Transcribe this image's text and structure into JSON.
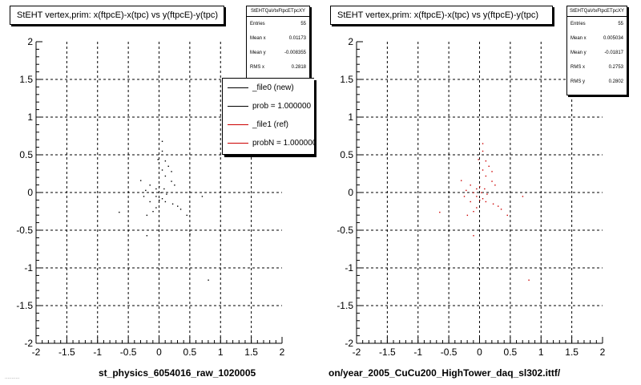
{
  "chart_data": [
    {
      "type": "scatter",
      "title": "StEHT  vertex,prim: x(ftpcE)-x(tpc) vs y(ftpcE)-y(tpc)",
      "xlim": [
        -2,
        2
      ],
      "ylim": [
        -2,
        2
      ],
      "x_ticks": [
        "-2",
        "-1.5",
        "-1",
        "-0.5",
        "0",
        "0.5",
        "1",
        "1.5",
        "2"
      ],
      "y_ticks": [
        "2",
        "1.5",
        "1",
        "0.5",
        "0",
        "-0.5",
        "-1",
        "-1.5",
        "-2"
      ],
      "grid": true,
      "caption": "st_physics_6054016_raw_1020005",
      "marker_color": "#000000",
      "points": [
        [
          0.05,
          0.68
        ],
        [
          0.05,
          0.55
        ],
        [
          0.1,
          0.42
        ],
        [
          -0.02,
          0.44
        ],
        [
          0.15,
          0.35
        ],
        [
          0.2,
          0.28
        ],
        [
          0.05,
          0.3
        ],
        [
          0.1,
          0.22
        ],
        [
          0.2,
          0.15
        ],
        [
          -0.3,
          0.16
        ],
        [
          -0.15,
          0.1
        ],
        [
          -0.05,
          0.05
        ],
        [
          0.0,
          0.08
        ],
        [
          0.08,
          0.05
        ],
        [
          -0.22,
          0.03
        ],
        [
          -0.1,
          0.0
        ],
        [
          0.03,
          0.0
        ],
        [
          0.12,
          -0.02
        ],
        [
          0.25,
          0.1
        ],
        [
          -0.05,
          -0.05
        ],
        [
          0.0,
          -0.1
        ],
        [
          0.05,
          -0.08
        ],
        [
          -0.15,
          -0.12
        ],
        [
          0.1,
          -0.12
        ],
        [
          -0.25,
          -0.05
        ],
        [
          0.3,
          -0.18
        ],
        [
          0.22,
          -0.15
        ],
        [
          -0.05,
          -0.2
        ],
        [
          -0.1,
          -0.25
        ],
        [
          0.35,
          -0.22
        ],
        [
          -0.65,
          -0.26
        ],
        [
          -0.2,
          -0.3
        ],
        [
          0.45,
          -0.3
        ],
        [
          0.5,
          -0.55
        ],
        [
          -0.2,
          -0.57
        ],
        [
          0.8,
          -1.16
        ],
        [
          0.7,
          -0.05
        ]
      ],
      "stats": {
        "name": "StEHTQaVtxFtpcETpcXY",
        "entries_label": "Entries",
        "entries": "55",
        "mean_x_label": "Mean x",
        "mean_x": "0.01173",
        "mean_y_label": "Mean y",
        "mean_y": "-0.008355",
        "rms_x_label": "RMS x",
        "rms_x": "0.2818"
      },
      "legend": [
        {
          "label": "_file0 (new)",
          "color": "#000000"
        },
        {
          "label": "prob = 1.000000",
          "color": "#000000"
        },
        {
          "label": "_file1 (ref)",
          "color": "#cc0000"
        },
        {
          "label": "probN = 1.000000",
          "color": "#cc0000"
        }
      ]
    },
    {
      "type": "scatter",
      "title": "StEHT  vertex,prim: x(ftpcE)-x(tpc) vs y(ftpcE)-y(tpc)",
      "xlim": [
        -2,
        2
      ],
      "ylim": [
        -2,
        2
      ],
      "x_ticks": [
        "-2",
        "-1.5",
        "-1",
        "-0.5",
        "0",
        "0.5",
        "1",
        "1.5",
        "2"
      ],
      "y_ticks": [
        "2",
        "1.5",
        "1",
        "0.5",
        "0",
        "-0.5",
        "-1",
        "-1.5",
        "-2"
      ],
      "grid": true,
      "caption": "on/year_2005_CuCu200_HighTower_daq_sl302.ittf/",
      "marker_color": "#cc0000",
      "points": [
        [
          0.05,
          0.65
        ],
        [
          0.05,
          0.55
        ],
        [
          0.1,
          0.42
        ],
        [
          -0.02,
          0.44
        ],
        [
          0.15,
          0.35
        ],
        [
          0.2,
          0.28
        ],
        [
          0.05,
          0.3
        ],
        [
          0.1,
          0.22
        ],
        [
          0.2,
          0.15
        ],
        [
          -0.3,
          0.16
        ],
        [
          -0.15,
          0.1
        ],
        [
          -0.05,
          0.05
        ],
        [
          0.0,
          0.08
        ],
        [
          0.08,
          0.05
        ],
        [
          -0.22,
          0.03
        ],
        [
          -0.1,
          0.0
        ],
        [
          0.03,
          0.0
        ],
        [
          0.12,
          -0.02
        ],
        [
          0.25,
          0.1
        ],
        [
          -0.05,
          -0.05
        ],
        [
          0.0,
          -0.1
        ],
        [
          0.05,
          -0.08
        ],
        [
          -0.15,
          -0.12
        ],
        [
          0.1,
          -0.12
        ],
        [
          -0.25,
          -0.05
        ],
        [
          0.3,
          -0.18
        ],
        [
          0.22,
          -0.15
        ],
        [
          -0.05,
          -0.2
        ],
        [
          -0.1,
          -0.25
        ],
        [
          0.35,
          -0.22
        ],
        [
          -0.65,
          -0.26
        ],
        [
          -0.2,
          -0.3
        ],
        [
          0.45,
          -0.3
        ],
        [
          -0.1,
          -0.57
        ],
        [
          0.8,
          -1.16
        ],
        [
          0.7,
          -0.05
        ]
      ],
      "stats": {
        "name": "StEHTQaVtxFtpcETpcXY",
        "entries_label": "Entries",
        "entries": "55",
        "mean_x_label": "Mean x",
        "mean_x": "0.005034",
        "mean_y_label": "Mean y",
        "mean_y": "-0.01817",
        "rms_x_label": "RMS x",
        "rms_x": "0.2753",
        "rms_y_label": "RMS y",
        "rms_y": "0.2802"
      }
    }
  ],
  "footer_text": "..........."
}
